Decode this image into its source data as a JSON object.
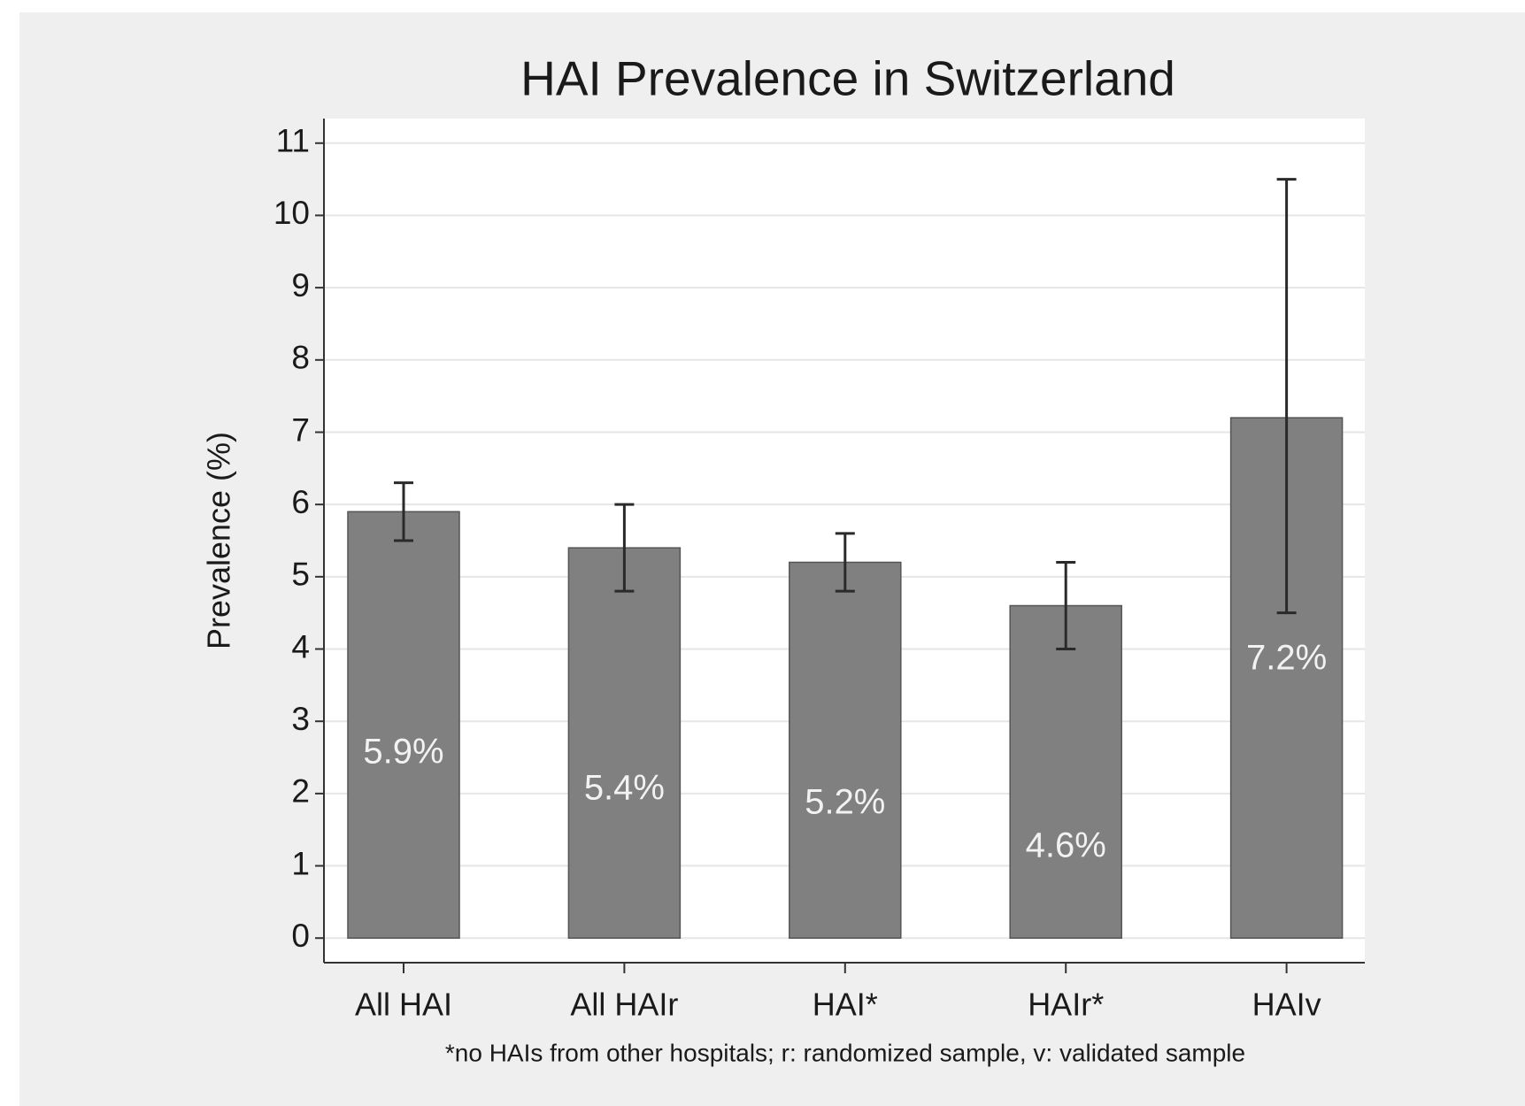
{
  "chart_data": {
    "type": "bar",
    "title": "HAI Prevalence in Switzerland",
    "y_label": "Prevalence (%)",
    "footnote": "*no HAIs from other hospitals; r: randomized sample, v: validated sample",
    "categories": [
      "All HAI",
      "All HAIr",
      "HAI*",
      "HAIr*",
      "HAIv"
    ],
    "values": [
      5.9,
      5.4,
      5.2,
      4.6,
      7.2
    ],
    "value_labels": [
      "5.9%",
      "5.4%",
      "5.2%",
      "4.6%",
      "7.2%"
    ],
    "low": [
      5.5,
      4.8,
      4.8,
      4.0,
      4.5
    ],
    "high": [
      6.3,
      6.0,
      5.6,
      5.2,
      10.5
    ],
    "color": "#808080",
    "ylim": [
      -0.34,
      11.34
    ],
    "yticks": [
      0,
      1,
      2,
      3,
      4,
      5,
      6,
      7,
      8,
      9,
      10,
      11
    ],
    "grid": true
  }
}
